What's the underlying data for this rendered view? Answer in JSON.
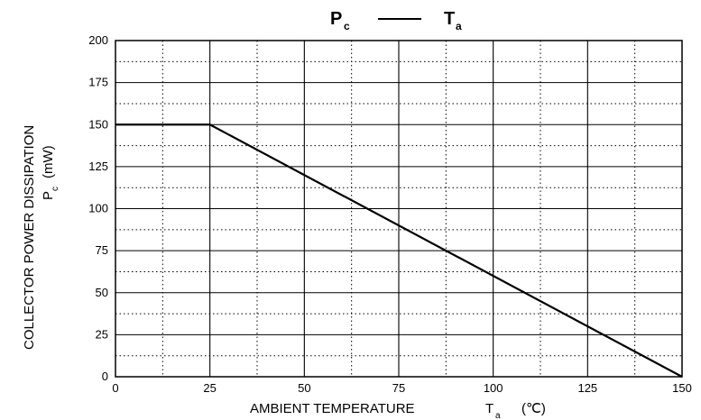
{
  "chart_data": {
    "type": "line",
    "title": {
      "left_symbol": "P",
      "left_subscript": "c",
      "right_symbol": "T",
      "right_subscript": "a"
    },
    "xlabel": {
      "text": "AMBIENT TEMPERATURE",
      "symbol": "T",
      "subscript": "a",
      "unit": "(℃)"
    },
    "ylabel": {
      "line1": "COLLECTOR POWER DISSIPATION",
      "symbol": "P",
      "subscript": "c",
      "unit": "(mW)"
    },
    "xlim": [
      0,
      150
    ],
    "ylim": [
      0,
      200
    ],
    "x_ticks": [
      0,
      25,
      50,
      75,
      100,
      125,
      150
    ],
    "y_ticks": [
      0,
      25,
      50,
      75,
      100,
      125,
      150,
      175,
      200
    ],
    "grid": true,
    "series": [
      {
        "x": [
          0,
          25,
          150
        ],
        "y": [
          150,
          150,
          0
        ],
        "color": "#000000"
      }
    ]
  }
}
